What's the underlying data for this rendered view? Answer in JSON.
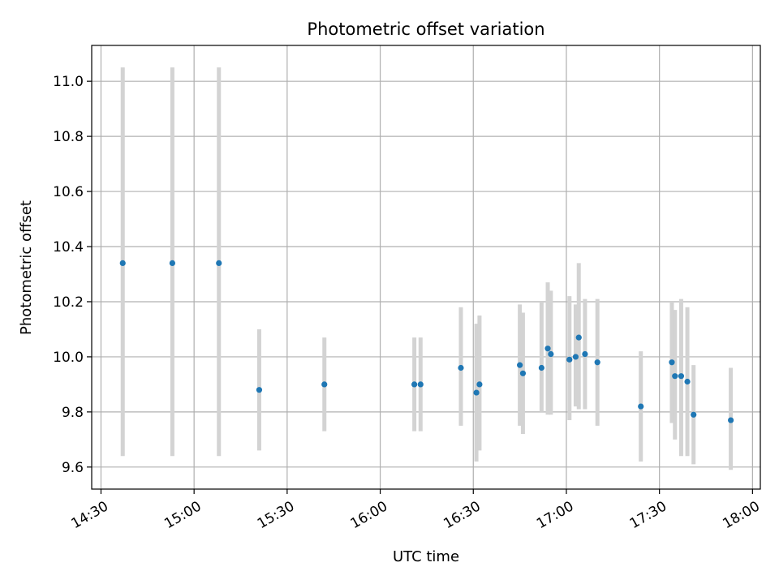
{
  "chart_data": {
    "type": "scatter",
    "title": "Photometric offset variation",
    "xlabel": "UTC time",
    "ylabel": "Photometric offset",
    "x_tick_labels": [
      "14:30",
      "15:00",
      "15:30",
      "16:00",
      "16:30",
      "17:00",
      "17:30",
      "18:00"
    ],
    "y_tick_labels": [
      "9.6",
      "9.8",
      "10.0",
      "10.2",
      "10.4",
      "10.6",
      "10.8",
      "11.0"
    ],
    "xlim": [
      "14:27",
      "18:00"
    ],
    "ylim": [
      9.52,
      11.13
    ],
    "grid": true,
    "colors": {
      "point": "#1f77b4",
      "errorbar": "#d3d3d3",
      "grid": "#b0b0b0"
    },
    "points": [
      {
        "x": "14:37",
        "y": 10.34,
        "ylow": 9.64,
        "yhigh": 11.05
      },
      {
        "x": "14:53",
        "y": 10.34,
        "ylow": 9.64,
        "yhigh": 11.05
      },
      {
        "x": "15:08",
        "y": 10.34,
        "ylow": 9.64,
        "yhigh": 11.05
      },
      {
        "x": "15:21",
        "y": 9.88,
        "ylow": 9.66,
        "yhigh": 10.1
      },
      {
        "x": "15:42",
        "y": 9.9,
        "ylow": 9.73,
        "yhigh": 10.07
      },
      {
        "x": "16:11",
        "y": 9.9,
        "ylow": 9.73,
        "yhigh": 10.07
      },
      {
        "x": "16:13",
        "y": 9.9,
        "ylow": 9.73,
        "yhigh": 10.07
      },
      {
        "x": "16:26",
        "y": 9.96,
        "ylow": 9.75,
        "yhigh": 10.18
      },
      {
        "x": "16:31",
        "y": 9.87,
        "ylow": 9.62,
        "yhigh": 10.12
      },
      {
        "x": "16:32",
        "y": 9.9,
        "ylow": 9.66,
        "yhigh": 10.15
      },
      {
        "x": "16:45",
        "y": 9.97,
        "ylow": 9.75,
        "yhigh": 10.19
      },
      {
        "x": "16:46",
        "y": 9.94,
        "ylow": 9.72,
        "yhigh": 10.16
      },
      {
        "x": "16:52",
        "y": 9.96,
        "ylow": 9.8,
        "yhigh": 10.2
      },
      {
        "x": "16:54",
        "y": 10.03,
        "ylow": 9.79,
        "yhigh": 10.27
      },
      {
        "x": "16:55",
        "y": 10.01,
        "ylow": 9.79,
        "yhigh": 10.24
      },
      {
        "x": "17:01",
        "y": 9.99,
        "ylow": 9.77,
        "yhigh": 10.22
      },
      {
        "x": "17:03",
        "y": 10.0,
        "ylow": 9.82,
        "yhigh": 10.19
      },
      {
        "x": "17:04",
        "y": 10.07,
        "ylow": 9.81,
        "yhigh": 10.34
      },
      {
        "x": "17:06",
        "y": 10.01,
        "ylow": 9.81,
        "yhigh": 10.21
      },
      {
        "x": "17:10",
        "y": 9.98,
        "ylow": 9.75,
        "yhigh": 10.21
      },
      {
        "x": "17:24",
        "y": 9.82,
        "ylow": 9.62,
        "yhigh": 10.02
      },
      {
        "x": "17:34",
        "y": 9.98,
        "ylow": 9.76,
        "yhigh": 10.2
      },
      {
        "x": "17:35",
        "y": 9.93,
        "ylow": 9.7,
        "yhigh": 10.17
      },
      {
        "x": "17:37",
        "y": 9.93,
        "ylow": 9.64,
        "yhigh": 10.21
      },
      {
        "x": "17:39",
        "y": 9.91,
        "ylow": 9.64,
        "yhigh": 10.18
      },
      {
        "x": "17:41",
        "y": 9.79,
        "ylow": 9.61,
        "yhigh": 9.97
      },
      {
        "x": "17:53",
        "y": 9.77,
        "ylow": 9.59,
        "yhigh": 9.96
      }
    ]
  }
}
